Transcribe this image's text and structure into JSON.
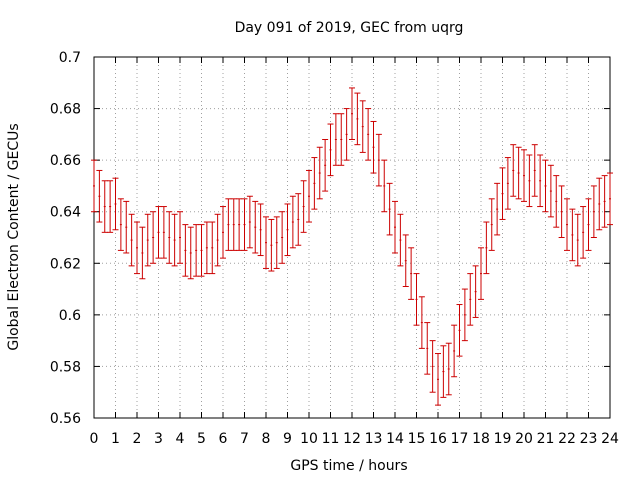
{
  "chart_data": {
    "type": "scatter",
    "title": "Day 091 of 2019, GEC from uqrg",
    "xlabel": "GPS time / hours",
    "ylabel": "Global Electron Content / GECUs",
    "xlim": [
      0,
      24
    ],
    "ylim": [
      0.56,
      0.7
    ],
    "grid": true,
    "series_color": "#cc0000",
    "x_ticks": [
      "0",
      "1",
      "2",
      "3",
      "4",
      "5",
      "6",
      "7",
      "8",
      "9",
      "10",
      "11",
      "12",
      "13",
      "14",
      "15",
      "16",
      "17",
      "18",
      "19",
      "20",
      "21",
      "22",
      "23",
      "24"
    ],
    "y_ticks": [
      "0.56",
      "0.58",
      "0.6",
      "0.62",
      "0.64",
      "0.66",
      "0.68",
      "0.7"
    ],
    "error_halfwidth": 0.01,
    "x": [
      0,
      0.25,
      0.5,
      0.75,
      1,
      1.25,
      1.5,
      1.75,
      2,
      2.25,
      2.5,
      2.75,
      3,
      3.25,
      3.5,
      3.75,
      4,
      4.25,
      4.5,
      4.75,
      5,
      5.25,
      5.5,
      5.75,
      6,
      6.25,
      6.5,
      6.75,
      7,
      7.25,
      7.5,
      7.75,
      8,
      8.25,
      8.5,
      8.75,
      9,
      9.25,
      9.5,
      9.75,
      10,
      10.25,
      10.5,
      10.75,
      11,
      11.25,
      11.5,
      11.75,
      12,
      12.25,
      12.5,
      12.75,
      13,
      13.25,
      13.5,
      13.75,
      14,
      14.25,
      14.5,
      14.75,
      15,
      15.25,
      15.5,
      15.75,
      16,
      16.25,
      16.5,
      16.75,
      17,
      17.25,
      17.5,
      17.75,
      18,
      18.25,
      18.5,
      18.75,
      19,
      19.25,
      19.5,
      19.75,
      20,
      20.25,
      20.5,
      20.75,
      21,
      21.25,
      21.5,
      21.75,
      22,
      22.25,
      22.5,
      22.75,
      23,
      23.25,
      23.5,
      23.75,
      24
    ],
    "y": [
      0.65,
      0.646,
      0.642,
      0.642,
      0.643,
      0.635,
      0.634,
      0.629,
      0.626,
      0.624,
      0.629,
      0.63,
      0.632,
      0.632,
      0.63,
      0.629,
      0.63,
      0.625,
      0.624,
      0.625,
      0.625,
      0.626,
      0.626,
      0.629,
      0.632,
      0.635,
      0.635,
      0.635,
      0.635,
      0.636,
      0.634,
      0.633,
      0.628,
      0.627,
      0.628,
      0.63,
      0.633,
      0.636,
      0.637,
      0.642,
      0.646,
      0.651,
      0.655,
      0.658,
      0.664,
      0.668,
      0.668,
      0.67,
      0.678,
      0.676,
      0.673,
      0.67,
      0.665,
      0.66,
      0.65,
      0.641,
      0.634,
      0.629,
      0.621,
      0.616,
      0.606,
      0.597,
      0.587,
      0.58,
      0.575,
      0.578,
      0.579,
      0.586,
      0.594,
      0.6,
      0.606,
      0.609,
      0.616,
      0.626,
      0.635,
      0.641,
      0.647,
      0.651,
      0.656,
      0.655,
      0.654,
      0.652,
      0.656,
      0.652,
      0.65,
      0.648,
      0.644,
      0.64,
      0.635,
      0.631,
      0.629,
      0.632,
      0.635,
      0.64,
      0.643,
      0.644,
      0.645
    ]
  }
}
